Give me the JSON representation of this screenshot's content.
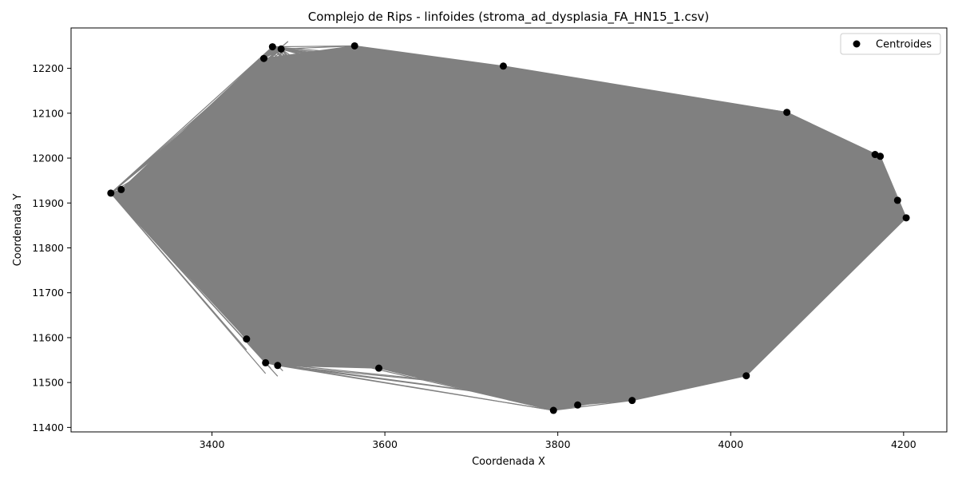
{
  "chart_data": {
    "type": "scatter",
    "title": "Complejo de Rips - linfoides (stroma_ad_dysplasia_FA_HN15_1.csv)",
    "xlabel": "Coordenada X",
    "ylabel": "Coordenada Y",
    "xlim": [
      3237,
      4250
    ],
    "ylim": [
      11390,
      12290
    ],
    "xticks": [
      3400,
      3600,
      3800,
      4000,
      4200
    ],
    "yticks": [
      11400,
      11500,
      11600,
      11700,
      11800,
      11900,
      12000,
      12100,
      12200
    ],
    "grid": false,
    "legend_position": "top-right",
    "series": [
      {
        "name": "Centroides",
        "color": "#000000",
        "x": [
          3283,
          3295,
          3470,
          3480,
          3460,
          3565,
          3737,
          4065,
          4167,
          4173,
          4193,
          4203,
          4018,
          3886,
          3823,
          3795,
          3593,
          3476,
          3462,
          3440
        ],
        "y": [
          11922,
          11930,
          12248,
          12243,
          12222,
          12250,
          12205,
          12102,
          12008,
          12004,
          11906,
          11867,
          11515,
          11460,
          11450,
          11438,
          11532,
          11538,
          11544,
          11597
        ]
      }
    ],
    "edge_color": "#808080"
  }
}
